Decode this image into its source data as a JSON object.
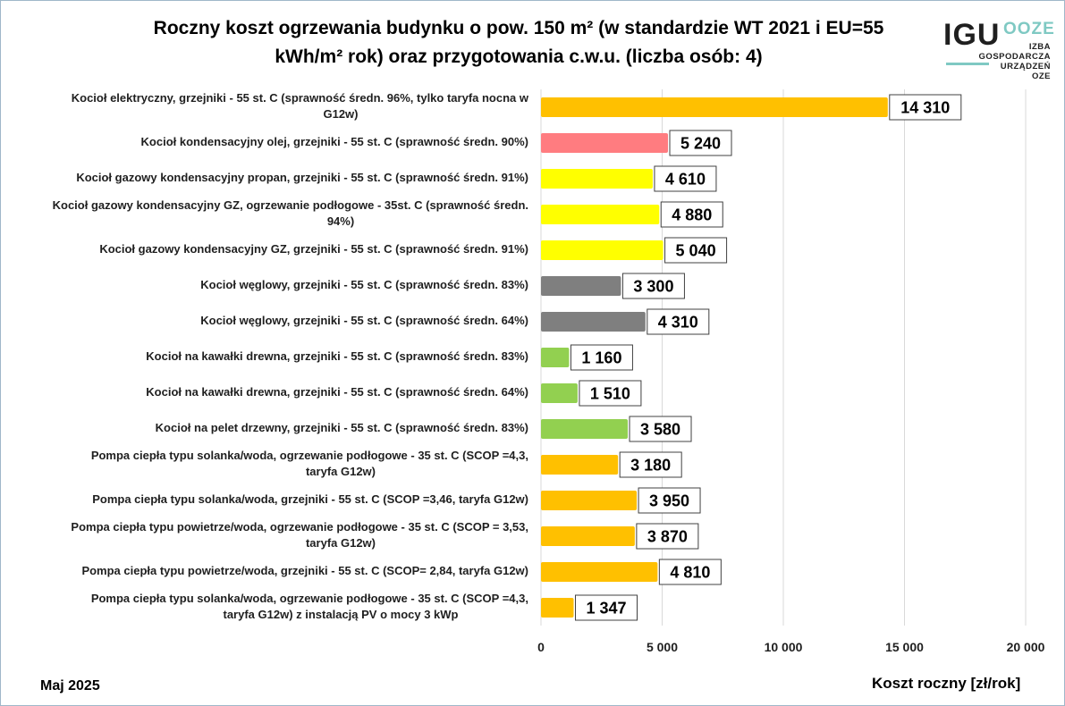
{
  "header": {
    "title_line1": "Roczny koszt ogrzewania budynku  o pow. 150 m²  (w standardzie WT 2021 i EU=55",
    "title_line2": "kWh/m² rok) oraz przygotowania c.w.u. (liczba osób: 4)"
  },
  "logo": {
    "igu": "IGU",
    "oze": "OOZE",
    "line1": "IZBA",
    "line2": "GOSPODARCZA",
    "line3": "URZĄDZEŃ",
    "line4": "OZE",
    "accent_color": "#7fc9c3"
  },
  "footer": {
    "date": "Maj 2025"
  },
  "chart_data": {
    "type": "bar",
    "orientation": "horizontal",
    "title": "Roczny koszt ogrzewania budynku  o pow. 150 m²  (w standardzie WT 2021 i EU=55 kWh/m² rok) oraz przygotowania c.w.u. (liczba osób: 4)",
    "xlabel": "Koszt roczny [zł/rok]",
    "ylabel": "",
    "xlim": [
      0,
      20000
    ],
    "ticks": [
      0,
      5000,
      10000,
      15000,
      20000
    ],
    "tick_labels": [
      "0",
      "5 000",
      "10 000",
      "15 000",
      "20 000"
    ],
    "grid": true,
    "categories": [
      "Kocioł  elektryczny,  grzejniki - 55 st. C  (sprawność średn. 96%, tylko taryfa nocna w G12w)",
      "Kocioł  kondensacyjny olej,  grzejniki - 55 st. C   (sprawność średn. 90%)",
      "Kocioł gazowy kondensacyjny propan, grzejniki - 55 st. C  (sprawność średn. 91%)",
      "Kocioł gazowy kondensacyjny GZ, ogrzewanie podłogowe - 35st. C   (sprawność średn. 94%)",
      "Kocioł gazowy kondensacyjny GZ, grzejniki - 55 st. C   (sprawność średn. 91%)",
      "Kocioł węglowy,  grzejniki - 55 st. C   (sprawność średn. 83%)",
      "Kocioł węglowy,  grzejniki - 55 st. C  (sprawność średn. 64%)",
      "Kocioł na kawałki drewna, grzejniki - 55 st. C (sprawność średn. 83%)",
      "Kocioł na kawałki drewna, grzejniki - 55 st. C  (sprawność średn. 64%)",
      "Kocioł na pelet drzewny, grzejniki - 55 st. C (sprawność średn. 83%)",
      "Pompa ciepła typu solanka/woda, ogrzewanie podłogowe - 35 st. C  (SCOP =4,3, taryfa G12w)",
      "Pompa ciepła typu solanka/woda, grzejniki - 55 st. C (SCOP =3,46, taryfa G12w)",
      "Pompa ciepła typu powietrze/woda, ogrzewanie podłogowe - 35 st. C (SCOP = 3,53, taryfa G12w)",
      "Pompa ciepła typu powietrze/woda, grzejniki - 55 st. C (SCOP= 2,84, taryfa G12w)",
      "Pompa ciepła typu solanka/woda, ogrzewanie podłogowe - 35 st. C  (SCOP =4,3, taryfa G12w) z instalacją PV o mocy 3 kWp"
    ],
    "category_lines": [
      [
        "Kocioł  elektryczny,  grzejniki - 55 st. C  (sprawność średn. 96%, tylko taryfa nocna w",
        "G12w)"
      ],
      [
        "Kocioł  kondensacyjny olej,  grzejniki - 55 st. C   (sprawność średn. 90%)"
      ],
      [
        "Kocioł gazowy kondensacyjny propan, grzejniki - 55 st. C  (sprawność średn. 91%)"
      ],
      [
        "Kocioł gazowy kondensacyjny GZ, ogrzewanie podłogowe - 35st. C   (sprawność średn.",
        "94%)"
      ],
      [
        "Kocioł gazowy kondensacyjny GZ, grzejniki - 55 st. C   (sprawność średn. 91%)"
      ],
      [
        "Kocioł węglowy,  grzejniki - 55 st. C   (sprawność średn. 83%)"
      ],
      [
        "Kocioł węglowy,  grzejniki - 55 st. C  (sprawność średn. 64%)"
      ],
      [
        "Kocioł na kawałki drewna, grzejniki - 55 st. C (sprawność średn. 83%)"
      ],
      [
        "Kocioł na kawałki drewna, grzejniki - 55 st. C  (sprawność średn. 64%)"
      ],
      [
        "Kocioł na pelet drzewny, grzejniki - 55 st. C (sprawność średn. 83%)"
      ],
      [
        "Pompa ciepła typu solanka/woda, ogrzewanie podłogowe - 35 st. C  (SCOP =4,3,",
        "taryfa G12w)"
      ],
      [
        "Pompa ciepła typu solanka/woda, grzejniki - 55 st. C (SCOP =3,46, taryfa G12w)"
      ],
      [
        "Pompa ciepła typu powietrze/woda, ogrzewanie podłogowe - 35 st. C (SCOP = 3,53,",
        "taryfa G12w)"
      ],
      [
        "Pompa ciepła typu powietrze/woda, grzejniki - 55 st. C (SCOP= 2,84, taryfa G12w)"
      ],
      [
        "Pompa ciepła typu solanka/woda, ogrzewanie podłogowe - 35 st. C  (SCOP =4,3,",
        "taryfa G12w) z instalacją PV o mocy 3 kWp"
      ]
    ],
    "values": [
      14310,
      5240,
      4610,
      4880,
      5040,
      3300,
      4310,
      1160,
      1510,
      3580,
      3180,
      3950,
      3870,
      4810,
      1347
    ],
    "value_labels": [
      "14 310",
      "5 240",
      "4 610",
      "4 880",
      "5 040",
      "3 300",
      "4 310",
      "1 160",
      "1 510",
      "3 580",
      "3 180",
      "3 950",
      "3 870",
      "4 810",
      "1 347"
    ],
    "colors": [
      "#ffc000",
      "#ff7c80",
      "#ffff00",
      "#ffff00",
      "#ffff00",
      "#7f7f7f",
      "#7f7f7f",
      "#92d050",
      "#92d050",
      "#92d050",
      "#ffc000",
      "#ffc000",
      "#ffc000",
      "#ffc000",
      "#ffc000"
    ],
    "gridline_color": "#d9d9d9"
  }
}
